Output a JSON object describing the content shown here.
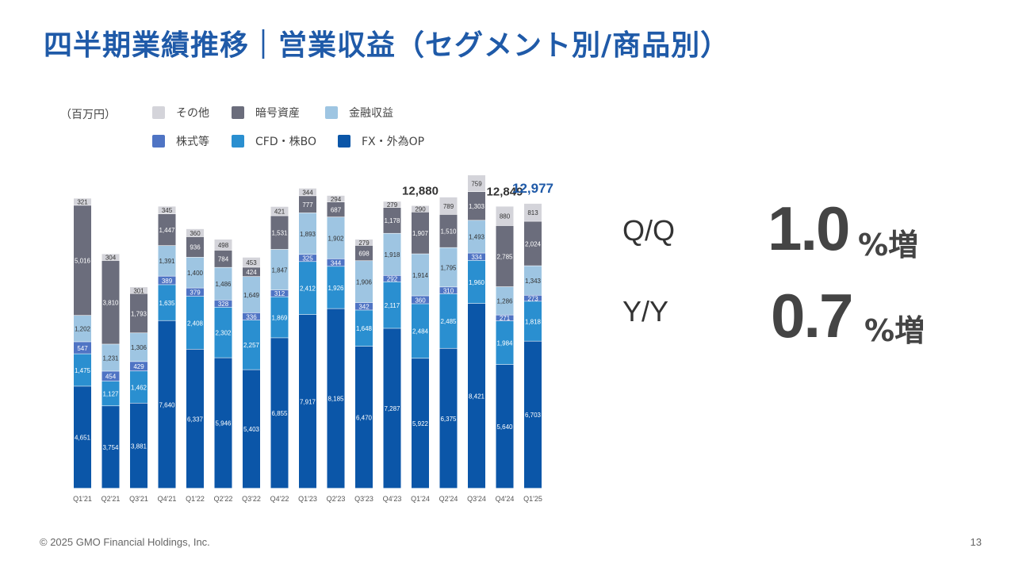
{
  "slide": {
    "title": "四半期業績推移｜営業収益（セグメント別/商品別）",
    "unit": "（百万円）",
    "footer": "© 2025 GMO Financial Holdings, Inc.",
    "page_number": "13"
  },
  "kpis": {
    "qq_label": "Q/Q",
    "qq_value": "1.0",
    "qq_suffix": "%増",
    "yy_label": "Y/Y",
    "yy_value": "0.7",
    "yy_suffix": "%増"
  },
  "colors": {
    "title": "#1f5aa8",
    "highlight_total": "#1f5aa8",
    "fx": "#0b56a8",
    "cfd": "#2a8fd0",
    "stock": "#4f74c4",
    "finance": "#9ec5e2",
    "crypto": "#6b6d7c",
    "other": "#d4d4da"
  },
  "legend": [
    {
      "key": "other",
      "label": "その他",
      "color": "#d4d4da"
    },
    {
      "key": "crypto",
      "label": "暗号資産",
      "color": "#6b6d7c"
    },
    {
      "key": "finance",
      "label": "金融収益",
      "color": "#9ec5e2"
    },
    {
      "key": "stock",
      "label": "株式等",
      "color": "#4f74c4"
    },
    {
      "key": "cfd",
      "label": "CFD・株BO",
      "color": "#2a8fd0"
    },
    {
      "key": "fx",
      "label": "FX・外為OP",
      "color": "#0b56a8"
    }
  ],
  "chart_data": {
    "type": "bar",
    "stacked": true,
    "categories": [
      "Q1'21",
      "Q2'21",
      "Q3'21",
      "Q4'21",
      "Q1'22",
      "Q2'22",
      "Q3'22",
      "Q4'22",
      "Q1'23",
      "Q2'23",
      "Q3'23",
      "Q4'23",
      "Q1'24",
      "Q2'24",
      "Q3'24",
      "Q4'24",
      "Q1'25"
    ],
    "series": [
      {
        "name": "FX・外為OP",
        "values": [
          4651,
          3754,
          3881,
          7640,
          6337,
          5946,
          5403,
          6855,
          7917,
          8185,
          6470,
          7287,
          5922,
          6375,
          8421,
          5640,
          6703
        ]
      },
      {
        "name": "CFD・株BO",
        "values": [
          1475,
          1127,
          1462,
          1635,
          2408,
          2302,
          2257,
          1869,
          2412,
          1926,
          1648,
          2117,
          2484,
          2485,
          1960,
          1984,
          1818
        ]
      },
      {
        "name": "株式等",
        "values": [
          547,
          454,
          429,
          389,
          379,
          328,
          336,
          312,
          325,
          344,
          342,
          292,
          360,
          310,
          334,
          271,
          273
        ]
      },
      {
        "name": "金融収益",
        "values": [
          1202,
          1231,
          1306,
          1391,
          1400,
          1486,
          1649,
          1847,
          1893,
          1902,
          1906,
          1918,
          1914,
          1795,
          1493,
          1286,
          1343
        ]
      },
      {
        "name": "暗号資産",
        "values": [
          5016,
          3810,
          1793,
          1447,
          936,
          784,
          424,
          1531,
          777,
          687,
          698,
          1178,
          1907,
          1510,
          1303,
          2785,
          2024
        ]
      },
      {
        "name": "その他",
        "values": [
          321,
          304,
          301,
          345,
          360,
          498,
          453,
          421,
          344,
          294,
          279,
          279,
          290,
          789,
          759,
          880,
          813
        ]
      }
    ],
    "total_labels": [
      {
        "category": "Q1'24",
        "value": "12,880"
      },
      {
        "category": "Q4'24",
        "value": "12,849"
      },
      {
        "category": "Q1'25",
        "value": "12,977",
        "highlight": true
      }
    ]
  }
}
